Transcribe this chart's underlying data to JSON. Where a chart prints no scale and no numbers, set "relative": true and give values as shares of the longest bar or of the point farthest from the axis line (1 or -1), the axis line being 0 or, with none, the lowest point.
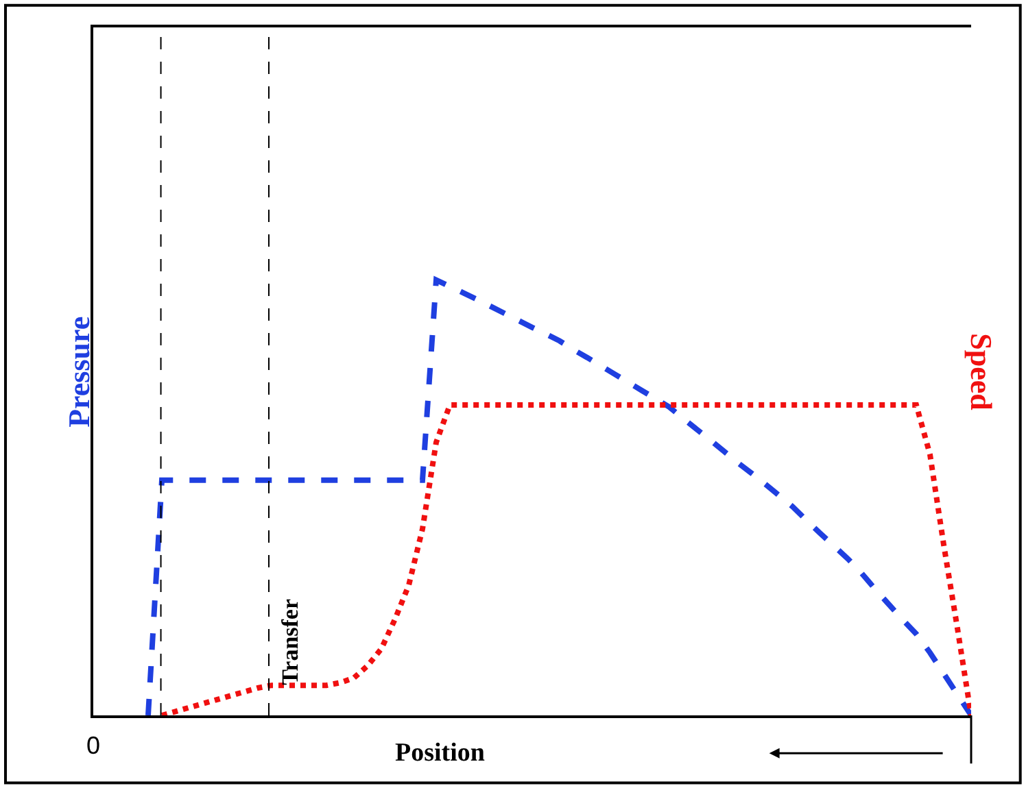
{
  "chart_data": {
    "type": "line",
    "relative": true,
    "xlabel": "Position",
    "legend": false,
    "annotations": [
      "0",
      "Transfer"
    ],
    "categories": [
      null,
      null,
      null,
      null,
      null,
      null,
      null,
      null,
      null,
      null,
      null,
      null,
      null,
      null,
      null,
      null,
      null,
      null,
      null,
      null,
      null,
      null,
      null,
      null,
      null,
      null,
      null,
      null,
      null,
      null,
      null,
      null,
      null,
      null,
      null,
      null,
      null,
      null,
      null,
      null,
      null,
      null,
      null,
      null,
      null,
      null,
      null,
      null,
      null,
      null,
      null,
      null,
      null,
      null,
      null,
      null,
      null,
      null,
      null,
      null,
      null,
      null,
      null,
      null,
      null
    ],
    "series": [
      {
        "name": "Pressure",
        "color": "#1f3fe0",
        "line_style": "dashed",
        "values": [
          null,
          null,
          null,
          null,
          0,
          0.54,
          0.54,
          0.54,
          0.54,
          0.54,
          0.54,
          0.54,
          0.54,
          0.54,
          0.54,
          0.54,
          0.54,
          0.54,
          0.54,
          0.54,
          0.54,
          0.54,
          0.54,
          0.54,
          0.54,
          1,
          0.985,
          0.97,
          0.955,
          0.939,
          0.923,
          0.907,
          0.891,
          0.876,
          0.86,
          0.84,
          0.822,
          0.803,
          0.784,
          0.765,
          0.746,
          0.727,
          0.708,
          0.682,
          0.657,
          0.632,
          0.606,
          0.58,
          0.556,
          0.531,
          0.505,
          0.479,
          0.448,
          0.418,
          0.389,
          0.36,
          0.327,
          0.29,
          0.255,
          0.22,
          0.187,
          0.144,
          0.096,
          0.048,
          0
        ]
      },
      {
        "name": "Speed",
        "color": "#f01010",
        "line_style": "dotted",
        "values": [
          null,
          null,
          null,
          null,
          null,
          0,
          0.009,
          0.018,
          0.027,
          0.036,
          0.045,
          0.054,
          0.063,
          0.069,
          0.069,
          0.069,
          0.069,
          0.069,
          0.075,
          0.086,
          0.114,
          0.153,
          0.221,
          0.299,
          0.428,
          0.627,
          0.713,
          0.713,
          0.713,
          0.713,
          0.713,
          0.713,
          0.713,
          0.713,
          0.713,
          0.713,
          0.713,
          0.713,
          0.713,
          0.713,
          0.713,
          0.713,
          0.713,
          0.713,
          0.713,
          0.713,
          0.713,
          0.713,
          0.713,
          0.713,
          0.713,
          0.713,
          0.713,
          0.713,
          0.713,
          0.713,
          0.713,
          0.713,
          0.713,
          0.713,
          0.713,
          0.599,
          0.392,
          0.2,
          0
        ]
      }
    ]
  }
}
